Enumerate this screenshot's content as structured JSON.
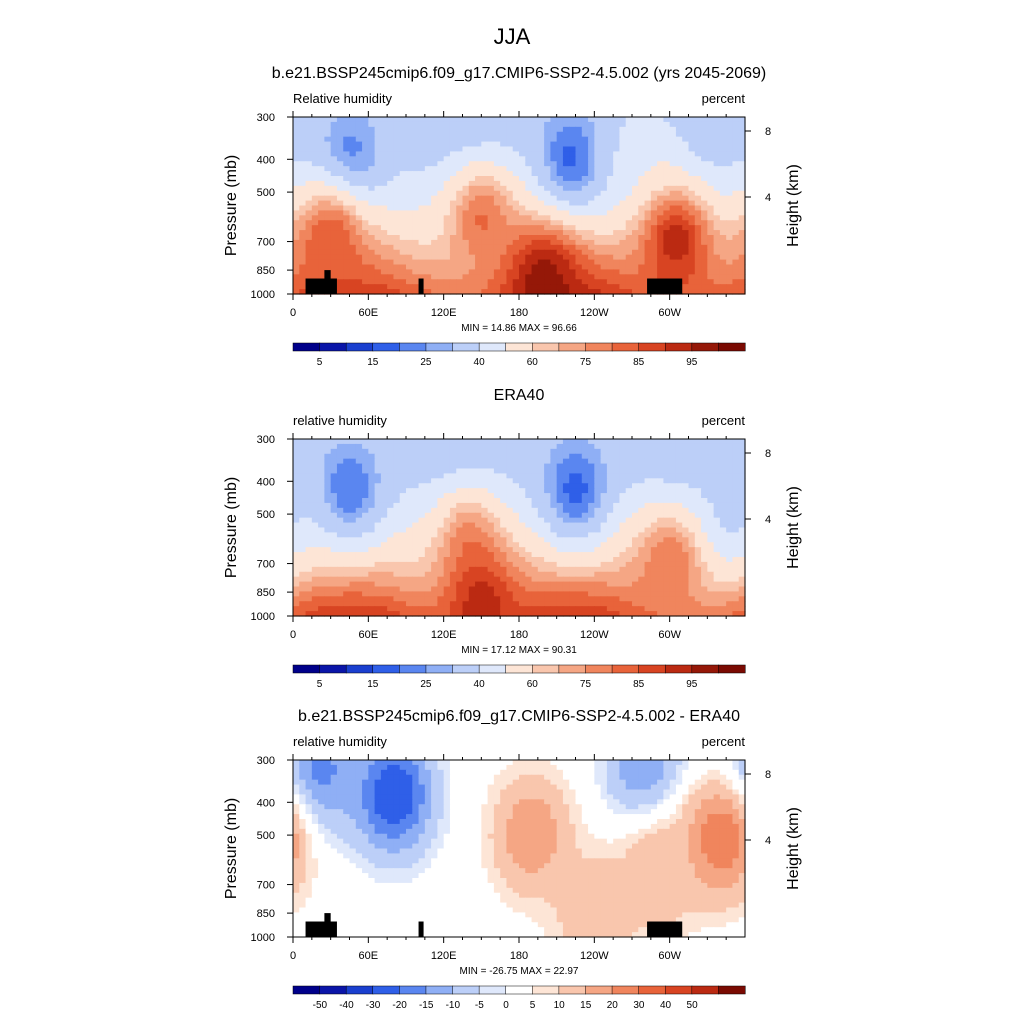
{
  "figure": {
    "title": "JJA",
    "x_ticks": [
      "0",
      "60E",
      "120E",
      "180",
      "120W",
      "60W"
    ],
    "y_ticks": [
      "300",
      "400",
      "500",
      "700",
      "850",
      "1000"
    ],
    "y_right_ticks": [
      "8",
      "4"
    ],
    "y_label": "Pressure (mb)",
    "y_right_label": "Height (km)",
    "colors": {
      "abs_scale": [
        "#00008a",
        "#0a15a8",
        "#1a3fcf",
        "#2f5fe8",
        "#5a86f0",
        "#8faff5",
        "#bccff8",
        "#dfe8fb",
        "#fde5d6",
        "#f9c6ad",
        "#f5a684",
        "#f0855d",
        "#e8633a",
        "#d84422",
        "#bb2a12",
        "#951808",
        "#7a0a02"
      ],
      "diff_scale": [
        "#00008a",
        "#0a15a8",
        "#1a3fcf",
        "#2f5fe8",
        "#5a86f0",
        "#8faff5",
        "#bccff8",
        "#dfe8fb",
        "#ffffff",
        "#fde5d6",
        "#f9c6ad",
        "#f5a684",
        "#f0855d",
        "#e8633a",
        "#d84422",
        "#bb2a12",
        "#7a0a02"
      ]
    }
  },
  "chart_data": [
    {
      "type": "heatmap",
      "title": "b.e21.BSSP245cmip6.f09_g17.CMIP6-SSP2-4.5.002 (yrs 2045-2069)",
      "left_label": "Relative humidity",
      "right_label": "percent",
      "stats": "MIN =  14.86  MAX =  96.66",
      "x_range": [
        0,
        360
      ],
      "y_range_mb": [
        1000,
        300
      ],
      "colorbar_labels": [
        "5",
        "15",
        "25",
        "40",
        "60",
        "75",
        "85",
        "95"
      ],
      "scale": "abs",
      "topography": true,
      "features": [
        {
          "lon": 45,
          "p": 400,
          "v": 20
        },
        {
          "lon": 222,
          "p": 400,
          "v": 18
        },
        {
          "lon": 285,
          "p": 380,
          "v": 45
        },
        {
          "lon": 150,
          "p": 600,
          "v": 75
        },
        {
          "lon": 30,
          "p": 700,
          "v": 80
        },
        {
          "lon": 305,
          "p": 700,
          "v": 88
        },
        {
          "lon": 200,
          "p": 930,
          "v": 93
        }
      ]
    },
    {
      "type": "heatmap",
      "title": "ERA40",
      "left_label": "relative humidity",
      "right_label": "percent",
      "stats": "MIN =  17.12  MAX =  90.31",
      "x_range": [
        0,
        360
      ],
      "y_range_mb": [
        1000,
        300
      ],
      "colorbar_labels": [
        "5",
        "15",
        "25",
        "40",
        "60",
        "75",
        "85",
        "95"
      ],
      "scale": "abs",
      "topography": false,
      "features": [
        {
          "lon": 45,
          "p": 420,
          "v": 20
        },
        {
          "lon": 225,
          "p": 420,
          "v": 18
        },
        {
          "lon": 340,
          "p": 480,
          "v": 35
        },
        {
          "lon": 140,
          "p": 600,
          "v": 70
        },
        {
          "lon": 300,
          "p": 700,
          "v": 75
        },
        {
          "lon": 150,
          "p": 930,
          "v": 88
        }
      ]
    },
    {
      "type": "heatmap",
      "title": "b.e21.BSSP245cmip6.f09_g17.CMIP6-SSP2-4.5.002 - ERA40",
      "left_label": "relative humidity",
      "right_label": "percent",
      "stats": "MIN = -26.75  MAX =  22.97",
      "x_range": [
        0,
        360
      ],
      "y_range_mb": [
        1000,
        300
      ],
      "colorbar_labels": [
        "-50",
        "-40",
        "-30",
        "-20",
        "-15",
        "-10",
        "-5",
        "0",
        "5",
        "10",
        "15",
        "20",
        "30",
        "40",
        "50"
      ],
      "scale": "diff",
      "topography": true,
      "features": [
        {
          "lon": 80,
          "p": 380,
          "v": -26
        },
        {
          "lon": 20,
          "p": 330,
          "v": -18
        },
        {
          "lon": 280,
          "p": 320,
          "v": -15
        },
        {
          "lon": 190,
          "p": 500,
          "v": 15
        },
        {
          "lon": 340,
          "p": 520,
          "v": 20
        },
        {
          "lon": 290,
          "p": 650,
          "v": 10
        },
        {
          "lon": 240,
          "p": 850,
          "v": 10
        }
      ]
    }
  ]
}
